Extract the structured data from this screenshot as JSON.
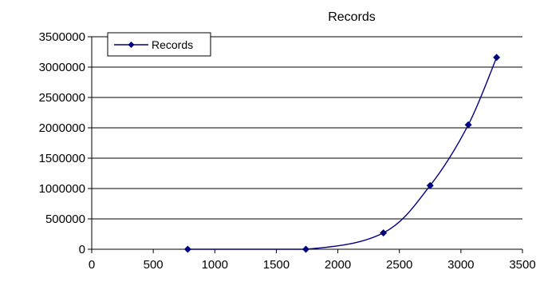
{
  "chart_data": {
    "type": "scatter",
    "title": "Records",
    "xlabel": "",
    "ylabel": "",
    "xlim": [
      0,
      3500
    ],
    "ylim": [
      0,
      3500000
    ],
    "x_ticks": [
      0,
      500,
      1000,
      1500,
      2000,
      2500,
      3000,
      3500
    ],
    "y_ticks": [
      0,
      500000,
      1000000,
      1500000,
      2000000,
      2500000,
      3000000,
      3500000
    ],
    "grid": "horizontal",
    "legend_position": "top-left",
    "line_style": "smooth",
    "series": [
      {
        "name": "Records",
        "color": "#000080",
        "marker": "diamond",
        "x": [
          780,
          1740,
          2370,
          2750,
          3060,
          3290
        ],
        "y": [
          0,
          0,
          270000,
          1050000,
          2050000,
          3160000
        ]
      }
    ]
  }
}
